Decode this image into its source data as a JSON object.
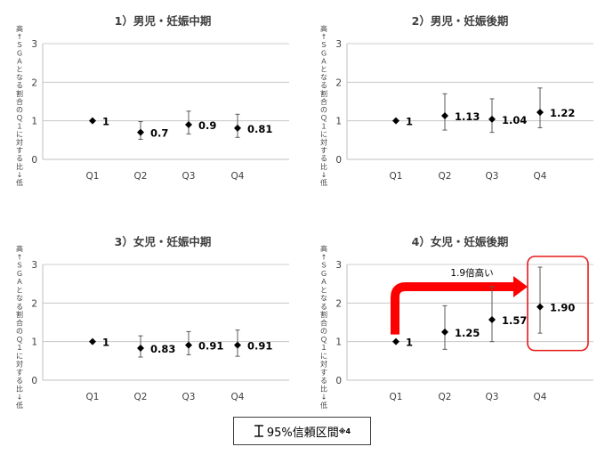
{
  "chart_data": [
    {
      "type": "scatter",
      "title": "1）男児・妊娠中期",
      "ylabel": "高↑ＳＧＡとなる割合のＱ１に対する比↓低",
      "categories": [
        "Q1",
        "Q2",
        "Q3",
        "Q4"
      ],
      "values": [
        1,
        0.7,
        0.9,
        0.81
      ],
      "labels": [
        "1",
        "0.7",
        "0.9",
        "0.81"
      ],
      "ci_lower": [
        null,
        0.52,
        0.66,
        0.57
      ],
      "ci_upper": [
        null,
        0.98,
        1.25,
        1.17
      ],
      "ylim": [
        0,
        3
      ],
      "yticks": [
        0,
        1,
        2,
        3
      ],
      "grid": true
    },
    {
      "type": "scatter",
      "title": "2）男児・妊娠後期",
      "ylabel": "高↑ＳＧＡとなる割合のＱ１に対する比↓低",
      "categories": [
        "Q1",
        "Q2",
        "Q3",
        "Q4"
      ],
      "values": [
        1,
        1.13,
        1.04,
        1.22
      ],
      "labels": [
        "1",
        "1.13",
        "1.04",
        "1.22"
      ],
      "ci_lower": [
        null,
        0.76,
        0.7,
        0.82
      ],
      "ci_upper": [
        null,
        1.7,
        1.57,
        1.85
      ],
      "ylim": [
        0,
        3
      ],
      "yticks": [
        0,
        1,
        2,
        3
      ],
      "grid": true
    },
    {
      "type": "scatter",
      "title": "3）女児・妊娠中期",
      "ylabel": "高↑ＳＧＡとなる割合のＱ１に対する比↓低",
      "categories": [
        "Q1",
        "Q2",
        "Q3",
        "Q4"
      ],
      "values": [
        1,
        0.83,
        0.91,
        0.91
      ],
      "labels": [
        "1",
        "0.83",
        "0.91",
        "0.91"
      ],
      "ci_lower": [
        null,
        0.6,
        0.66,
        0.62
      ],
      "ci_upper": [
        null,
        1.15,
        1.26,
        1.3
      ],
      "ylim": [
        0,
        3
      ],
      "yticks": [
        0,
        1,
        2,
        3
      ],
      "grid": true
    },
    {
      "type": "scatter",
      "title": "4）女児・妊娠後期",
      "ylabel": "高↑ＳＧＡとなる割合のＱ１に対する比↓低",
      "categories": [
        "Q1",
        "Q2",
        "Q3",
        "Q4"
      ],
      "values": [
        1,
        1.25,
        1.57,
        1.9
      ],
      "labels": [
        "1",
        "1.25",
        "1.57",
        "1.90"
      ],
      "ci_lower": [
        null,
        0.8,
        1.0,
        1.22
      ],
      "ci_upper": [
        null,
        1.93,
        2.43,
        2.93
      ],
      "ylim": [
        0,
        3
      ],
      "yticks": [
        0,
        1,
        2,
        3
      ],
      "grid": true,
      "annotation": {
        "text": "1.9倍高い",
        "arrow_from": "Q1",
        "arrow_to": "Q4",
        "highlight": "Q4"
      }
    }
  ],
  "legend": {
    "text": "95%信頼区間",
    "note": "※4"
  },
  "colors": {
    "axis": "#bfbfbf",
    "grid": "#bfbfbf",
    "marker": "#000000",
    "text": "#404040",
    "arrow": "#ff0000",
    "highlight": "#e8191a"
  }
}
